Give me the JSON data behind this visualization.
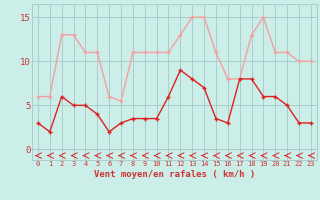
{
  "x": [
    0,
    1,
    2,
    3,
    4,
    5,
    6,
    7,
    8,
    9,
    10,
    11,
    12,
    13,
    14,
    15,
    16,
    17,
    18,
    19,
    20,
    21,
    22,
    23
  ],
  "wind_avg": [
    3,
    2,
    6,
    5,
    5,
    4,
    2,
    3,
    3.5,
    3.5,
    3.5,
    6,
    9,
    8,
    7,
    3.5,
    3,
    8,
    8,
    6,
    6,
    5,
    3,
    3
  ],
  "wind_gust": [
    6,
    6,
    13,
    13,
    11,
    11,
    6,
    5.5,
    11,
    11,
    11,
    11,
    13,
    15,
    15,
    11,
    8,
    8,
    13,
    15,
    11,
    11,
    10,
    10
  ],
  "avg_color": "#dd2222",
  "gust_color": "#f4a0a0",
  "dir_color": "#dd2222",
  "bg_color": "#cceee8",
  "grid_color": "#aacccc",
  "axis_color": "#cc3333",
  "title": "Vent moyen/en rafales ( km/h )",
  "title_color": "#cc3333",
  "yticks": [
    0,
    5,
    10,
    15
  ],
  "ylim": [
    -1.2,
    16.5
  ],
  "xlim": [
    -0.5,
    23.5
  ]
}
